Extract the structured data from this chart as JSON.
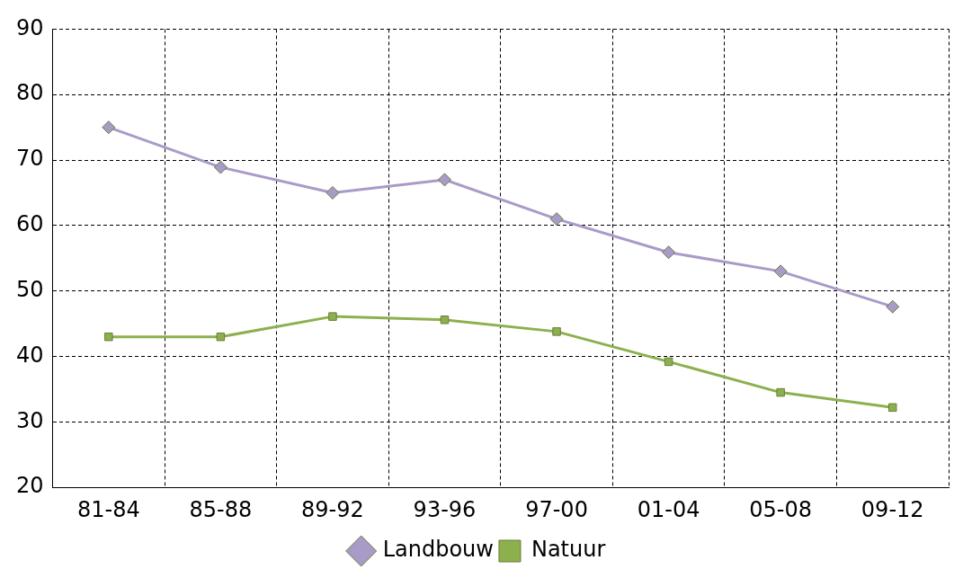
{
  "chart_data": {
    "type": "line",
    "categories": [
      "81-84",
      "85-88",
      "89-92",
      "93-96",
      "97-00",
      "01-04",
      "05-08",
      "09-12"
    ],
    "series": [
      {
        "name": "Landbouw",
        "color": "#a99bc8",
        "marker": "diamond",
        "values": [
          75,
          68.9,
          65,
          67,
          61,
          55.9,
          53,
          47.6
        ]
      },
      {
        "name": "Natuur",
        "color": "#8db04e",
        "marker": "square",
        "values": [
          43,
          43,
          46.1,
          45.6,
          43.8,
          39.2,
          34.5,
          32.2
        ]
      }
    ],
    "ylim": [
      20,
      90
    ],
    "yticks": [
      20,
      30,
      40,
      50,
      60,
      70,
      80,
      90
    ],
    "grid": true,
    "legend": "bottom",
    "line_style": "solid"
  }
}
